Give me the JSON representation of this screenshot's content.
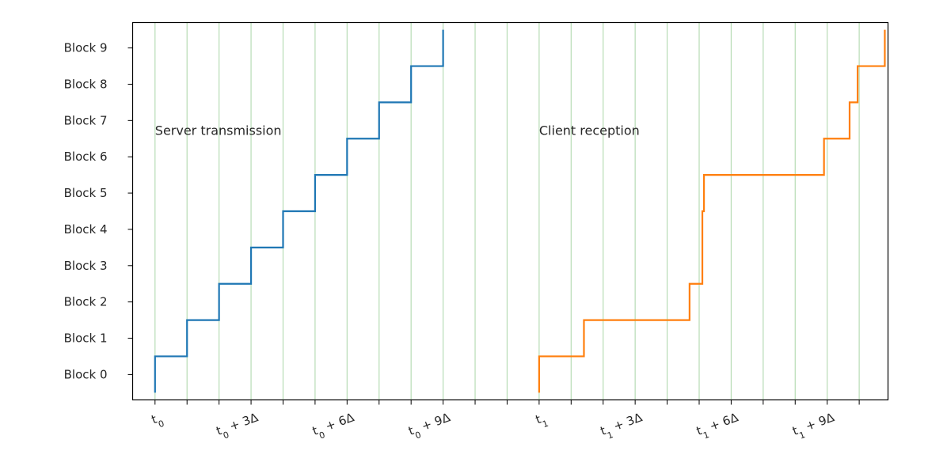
{
  "chart_data": {
    "type": "line",
    "line_shape": "step",
    "y_categories": [
      "Block 0",
      "Block 1",
      "Block 2",
      "Block 3",
      "Block 4",
      "Block 5",
      "Block 6",
      "Block 7",
      "Block 8",
      "Block 9"
    ],
    "x_ticks": [
      {
        "x": 0,
        "label_parts": [
          [
            "t",
            ""
          ],
          [
            "0",
            "sub"
          ]
        ]
      },
      {
        "x": 3,
        "label_parts": [
          [
            "t",
            ""
          ],
          [
            "0",
            "sub"
          ],
          [
            " + 3Δ",
            ""
          ]
        ]
      },
      {
        "x": 6,
        "label_parts": [
          [
            "t",
            ""
          ],
          [
            "0",
            "sub"
          ],
          [
            " + 6Δ",
            ""
          ]
        ]
      },
      {
        "x": 9,
        "label_parts": [
          [
            "t",
            ""
          ],
          [
            "0",
            "sub"
          ],
          [
            " + 9Δ",
            ""
          ]
        ]
      },
      {
        "x": 12,
        "label_parts": [
          [
            "t",
            ""
          ],
          [
            "1",
            "sub"
          ]
        ]
      },
      {
        "x": 15,
        "label_parts": [
          [
            "t",
            ""
          ],
          [
            "1",
            "sub"
          ],
          [
            " + 3Δ",
            ""
          ]
        ]
      },
      {
        "x": 18,
        "label_parts": [
          [
            "t",
            ""
          ],
          [
            "1",
            "sub"
          ],
          [
            " + 6Δ",
            ""
          ]
        ]
      },
      {
        "x": 21,
        "label_parts": [
          [
            "t",
            ""
          ],
          [
            "1",
            "sub"
          ],
          [
            " + 9Δ",
            ""
          ]
        ]
      }
    ],
    "minor_x_ticks": [
      1,
      2,
      4,
      5,
      7,
      8,
      10,
      11,
      13,
      14,
      16,
      17,
      19,
      20,
      22
    ],
    "vertical_gridlines_at": [
      0,
      1,
      2,
      3,
      4,
      5,
      6,
      7,
      8,
      9,
      10,
      11,
      12,
      13,
      14,
      15,
      16,
      17,
      18,
      19,
      20,
      21,
      22
    ],
    "xlim": [
      -0.7,
      22.9
    ],
    "ylim": [
      -0.7,
      9.7
    ],
    "series": [
      {
        "color": "#1f77b4",
        "points": [
          [
            0,
            -0.5
          ],
          [
            0,
            0.5
          ],
          [
            1,
            0.5
          ],
          [
            1,
            1.5
          ],
          [
            2,
            1.5
          ],
          [
            2,
            2.5
          ],
          [
            3,
            2.5
          ],
          [
            3,
            3.5
          ],
          [
            4,
            3.5
          ],
          [
            4,
            4.5
          ],
          [
            5,
            4.5
          ],
          [
            5,
            5.5
          ],
          [
            6,
            5.5
          ],
          [
            6,
            6.5
          ],
          [
            7,
            6.5
          ],
          [
            7,
            7.5
          ],
          [
            8,
            7.5
          ],
          [
            8,
            8.5
          ],
          [
            9,
            8.5
          ],
          [
            9,
            9.5
          ]
        ]
      },
      {
        "color": "#ff7f0e",
        "points": [
          [
            12,
            -0.5
          ],
          [
            12,
            0.5
          ],
          [
            13.4,
            0.5
          ],
          [
            13.4,
            1.5
          ],
          [
            16.7,
            1.5
          ],
          [
            16.7,
            2.5
          ],
          [
            17.1,
            2.5
          ],
          [
            17.1,
            4.5
          ],
          [
            17.15,
            4.5
          ],
          [
            17.15,
            5.5
          ],
          [
            20.9,
            5.5
          ],
          [
            20.9,
            6.5
          ],
          [
            21.7,
            6.5
          ],
          [
            21.7,
            7.5
          ],
          [
            21.95,
            7.5
          ],
          [
            21.95,
            8.5
          ],
          [
            22.8,
            8.5
          ],
          [
            22.8,
            9.5
          ]
        ]
      }
    ],
    "annotations": [
      {
        "text": "Server transmission",
        "x": 0,
        "y": 6.6
      },
      {
        "text": "Client reception",
        "x": 12,
        "y": 6.6
      }
    ],
    "gridline_color": "#b7dcb5"
  }
}
